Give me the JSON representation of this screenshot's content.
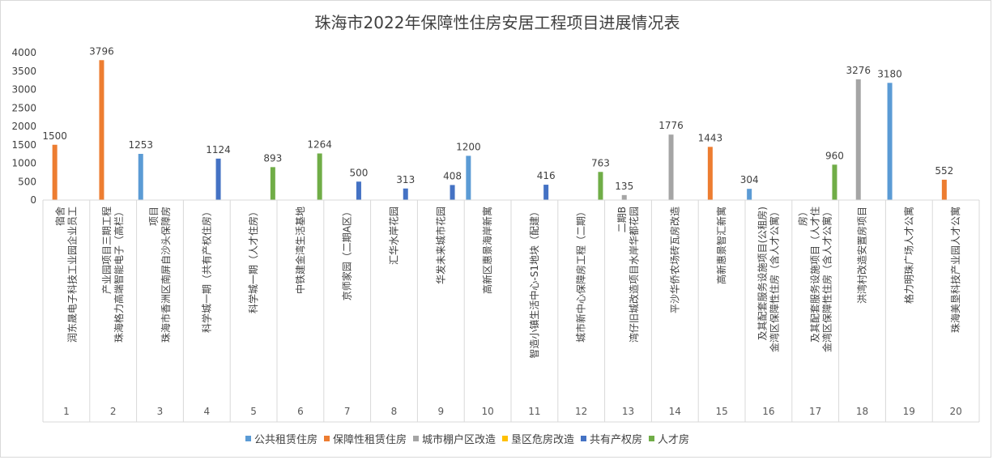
{
  "chart_data": {
    "type": "bar",
    "title": "珠海市2022年保障性住房安居工程项目进展情况表",
    "ylim": [
      0,
      4000
    ],
    "yticks": [
      0,
      500,
      1000,
      1500,
      2000,
      2500,
      3000,
      3500,
      4000
    ],
    "legend_position": "bottom",
    "grid": false,
    "series_legend": [
      {
        "name": "公共租赁住房",
        "color": "#5b9bd5"
      },
      {
        "name": "保障性租赁住房",
        "color": "#ed7d31"
      },
      {
        "name": "城市棚户区改造",
        "color": "#a5a5a5"
      },
      {
        "name": "垦区危房改造",
        "color": "#ffc000"
      },
      {
        "name": "共有产权房",
        "color": "#4472c4"
      },
      {
        "name": "人才房",
        "color": "#70ad47"
      }
    ],
    "categories": [
      {
        "no": "1",
        "lines": [
          "润东晟电子科技工业园企业员工",
          "宿舍"
        ],
        "value": 1500,
        "series": "保障性租赁住房"
      },
      {
        "no": "2",
        "lines": [
          "珠海格力高端智能电子（高栏）",
          "产业园项目三期工程"
        ],
        "value": 3796,
        "series": "保障性租赁住房"
      },
      {
        "no": "3",
        "lines": [
          "珠海市香洲区南屏自沙头保障房",
          "项目"
        ],
        "value": 1253,
        "series": "公共租赁住房"
      },
      {
        "no": "4",
        "lines": [
          "科学城一期（共有产权住房）"
        ],
        "value": 1124,
        "series": "共有产权房"
      },
      {
        "no": "5",
        "lines": [
          "科学城一期（人才住房）"
        ],
        "value": 893,
        "series": "人才房"
      },
      {
        "no": "6",
        "lines": [
          "中铁建金湾生活基地"
        ],
        "value": 1264,
        "series": "人才房"
      },
      {
        "no": "7",
        "lines": [
          "京师家园（二期A区）"
        ],
        "value": 500,
        "series": "共有产权房"
      },
      {
        "no": "8",
        "lines": [
          "汇华水岸花园"
        ],
        "value": 313,
        "series": "共有产权房"
      },
      {
        "no": "9",
        "lines": [
          "华发未来城市花园"
        ],
        "value": 408,
        "series": "共有产权房"
      },
      {
        "no": "10",
        "lines": [
          "高新区惠景海岸新寓"
        ],
        "value": 1200,
        "series": "公共租赁住房"
      },
      {
        "no": "11",
        "lines": [
          "智造小镇生活中心-S1地块（配建）"
        ],
        "value": 416,
        "series": "共有产权房"
      },
      {
        "no": "12",
        "lines": [
          "城市新中心保障房工程（二期）"
        ],
        "value": 763,
        "series": "人才房"
      },
      {
        "no": "13",
        "lines": [
          "湾仔旧城改造项目水岸华都花园",
          "二期B"
        ],
        "value": 135,
        "series": "城市棚户区改造"
      },
      {
        "no": "14",
        "lines": [
          "平沙华侨农场砖瓦房改造"
        ],
        "value": 1776,
        "series": "城市棚户区改造"
      },
      {
        "no": "15",
        "lines": [
          "高新惠景智汇新寓"
        ],
        "value": 1443,
        "series": "保障性租赁住房"
      },
      {
        "no": "16",
        "lines": [
          "金湾区保障性住房（含人才公寓）",
          "及其配套服务设施项目(公租房)"
        ],
        "value": 304,
        "series": "公共租赁住房"
      },
      {
        "no": "17",
        "lines": [
          "金湾区保障性住房（含人才公寓）",
          "及其配套服务设施项目（人才住",
          "房）"
        ],
        "value": 960,
        "series": "人才房"
      },
      {
        "no": "18",
        "lines": [
          "洪湾村改造安置房项目"
        ],
        "value": 3276,
        "series": "城市棚户区改造"
      },
      {
        "no": "19",
        "lines": [
          "格力明珠广场人才公寓"
        ],
        "value": 3180,
        "series": "公共租赁住房"
      },
      {
        "no": "20",
        "lines": [
          "珠海美垦科技产业园人才公寓"
        ],
        "value": 552,
        "series": "保障性租赁住房"
      }
    ]
  }
}
